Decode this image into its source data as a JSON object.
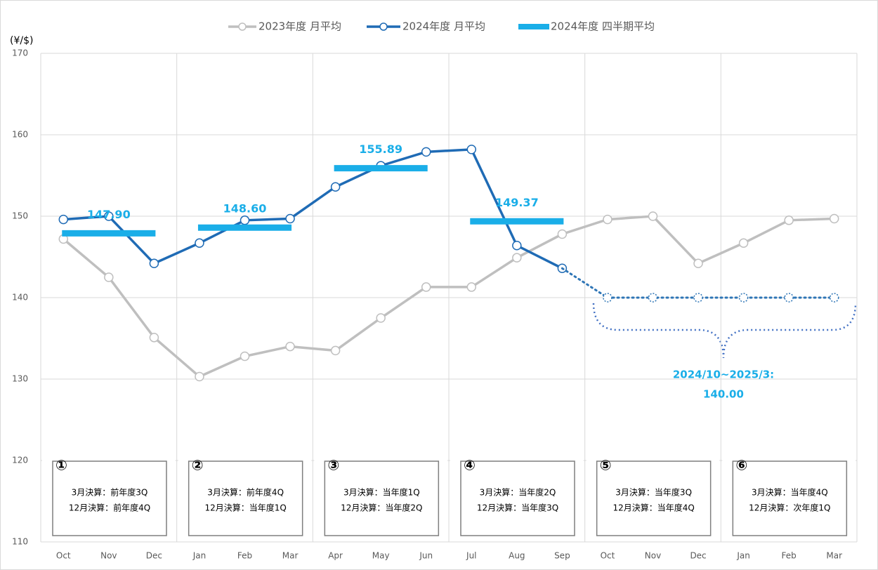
{
  "chart_data": {
    "type": "line",
    "y_unit": "(¥/$)",
    "categories": [
      "Oct",
      "Nov",
      "Dec",
      "Jan",
      "Feb",
      "Mar",
      "Apr",
      "May",
      "Jun",
      "Jul",
      "Aug",
      "Sep",
      "Oct",
      "Nov",
      "Dec",
      "Jan",
      "Feb",
      "Mar"
    ],
    "series": [
      {
        "name": "2023年度 月平均",
        "color": "#bfbfbf",
        "values": [
          147.2,
          142.5,
          135.1,
          130.3,
          132.8,
          134.0,
          133.5,
          137.5,
          141.3,
          141.3,
          144.9,
          147.8,
          149.6,
          150.0,
          144.2,
          146.7,
          149.5,
          149.7
        ]
      },
      {
        "name": "2024年度 月平均",
        "color": "#1f6bb5",
        "values": [
          149.6,
          150.0,
          144.2,
          146.7,
          149.5,
          149.7,
          153.6,
          156.2,
          157.9,
          158.2,
          146.4,
          143.6,
          null,
          null,
          null,
          null,
          null,
          null
        ]
      },
      {
        "color": "#2e75b6",
        "style": "dotted",
        "values": [
          null,
          null,
          null,
          null,
          null,
          null,
          null,
          null,
          null,
          null,
          null,
          143.6,
          140,
          140,
          140,
          140,
          140,
          140
        ]
      }
    ],
    "quarter_averages": {
      "name": "2024年度 四半期平均",
      "color": "#1aaee8",
      "values": [
        147.9,
        148.6,
        155.89,
        149.37
      ],
      "value_labels": [
        "147.90",
        "148.60",
        "155.89",
        "149.37"
      ]
    },
    "annotation": {
      "label": "2024/10~2025/3:",
      "value": 140,
      "value_label": "140.00"
    },
    "ylim": [
      110,
      170
    ],
    "yticks": [
      110,
      120,
      130,
      140,
      150,
      160,
      170
    ],
    "grid": true,
    "boxes": [
      {
        "number": "①",
        "lines": [
          "3月決算：前年度3Q",
          "12月決算：前年度4Q"
        ]
      },
      {
        "number": "②",
        "lines": [
          "3月決算：前年度4Q",
          "12月決算：当年度1Q"
        ]
      },
      {
        "number": "③",
        "lines": [
          "3月決算：当年度1Q",
          "12月決算：当年度2Q"
        ]
      },
      {
        "number": "④",
        "lines": [
          "3月決算：当年度2Q",
          "12月決算：当年度3Q"
        ]
      },
      {
        "number": "⑤",
        "lines": [
          "3月決算：当年度3Q",
          "12月決算：当年度4Q"
        ]
      },
      {
        "number": "⑥",
        "lines": [
          "3月決算：当年度4Q",
          "12月決算：次年度1Q"
        ]
      }
    ]
  }
}
